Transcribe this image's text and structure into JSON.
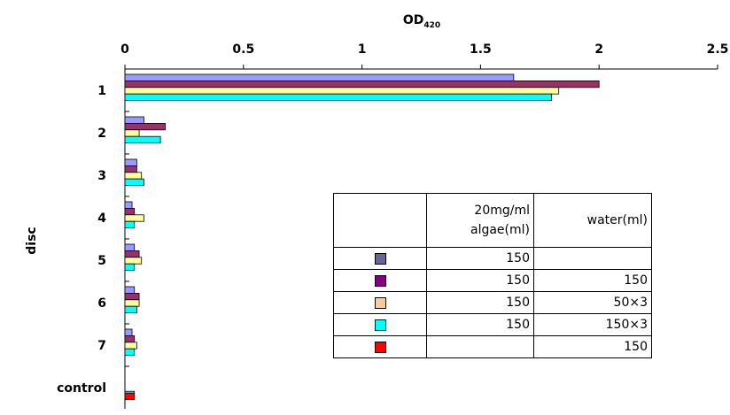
{
  "chart_data": {
    "type": "bar",
    "orientation": "horizontal",
    "title": "",
    "xlabel": "OD",
    "xlabel_sub": "420",
    "ylabel": "disc",
    "xlim": [
      0,
      2.5
    ],
    "xticks": [
      "0",
      "0.5",
      "1",
      "1.5",
      "2",
      "2.5"
    ],
    "categories": [
      "1",
      "2",
      "3",
      "4",
      "5",
      "6",
      "7",
      "control"
    ],
    "series": [
      {
        "color": "#9999ff",
        "values": [
          1.64,
          0.08,
          0.05,
          0.03,
          0.04,
          0.04,
          0.03,
          0.0
        ]
      },
      {
        "color": "#993366",
        "values": [
          2.0,
          0.17,
          0.05,
          0.04,
          0.06,
          0.06,
          0.04,
          0.0
        ]
      },
      {
        "color": "#ffff99",
        "values": [
          1.83,
          0.06,
          0.07,
          0.08,
          0.07,
          0.06,
          0.05,
          0.0
        ]
      },
      {
        "color": "#00ffff",
        "values": [
          1.8,
          0.15,
          0.08,
          0.04,
          0.04,
          0.05,
          0.04,
          0.04
        ]
      }
    ],
    "extra_marks": [
      {
        "category": "control",
        "color": "#ff0000",
        "value": 0.04
      }
    ],
    "legend_placement": "bottom-right",
    "grid": false
  },
  "legend_table": {
    "header": [
      "",
      "20mg/ml algae(ml)",
      "water(ml)"
    ],
    "header_line1": "20mg/ml",
    "header_line2": "algae(ml)",
    "header_water": "water(ml)",
    "rows": [
      {
        "color": "#666699",
        "algae": "150",
        "water": ""
      },
      {
        "color": "#800080",
        "algae": "150",
        "water": "150"
      },
      {
        "color": "#ffcc99",
        "algae": "150",
        "water": "50×3"
      },
      {
        "color": "#00ffff",
        "algae": "150",
        "water": "150×3"
      },
      {
        "color": "#ff0000",
        "algae": "",
        "water": "150"
      }
    ]
  }
}
